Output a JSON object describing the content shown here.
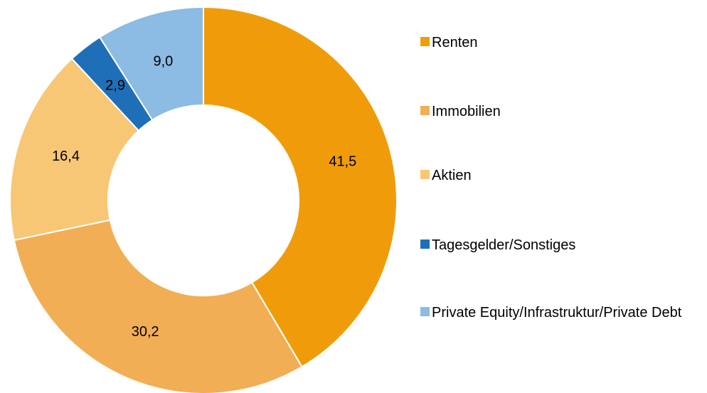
{
  "chart_data": {
    "type": "donut",
    "categories": [
      "Renten",
      "Immobilien",
      "Aktien",
      "Tagesgelder/Sonstiges",
      "Private Equity/Infrastruktur/Private Debt"
    ],
    "values": [
      41.5,
      30.2,
      16.4,
      2.9,
      9.0
    ],
    "value_labels": [
      "41,5",
      "30,2",
      "16,4",
      "2,9",
      "9,0"
    ],
    "colors": [
      "#f09c0a",
      "#f2ae55",
      "#f8c776",
      "#1f6fb8",
      "#8cbbe3"
    ],
    "legend": "right"
  }
}
